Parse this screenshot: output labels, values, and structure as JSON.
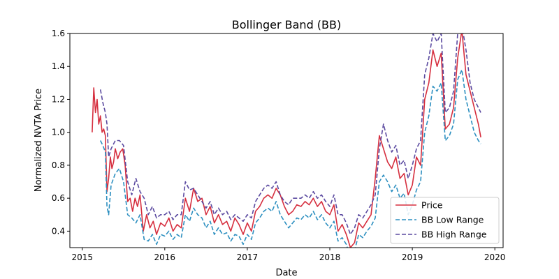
{
  "chart_data": {
    "type": "line",
    "title": "Bollinger Band (BB)",
    "xlabel": "Date",
    "ylabel": "Normalized NVTA Price",
    "xlim": [
      2014.85,
      2020.1
    ],
    "ylim": [
      0.3,
      1.6
    ],
    "x_ticks": [
      2015,
      2016,
      2017,
      2018,
      2019,
      2020
    ],
    "x_tick_labels": [
      "2015",
      "2016",
      "2017",
      "2018",
      "2019",
      "2020"
    ],
    "y_ticks": [
      0.4,
      0.6,
      0.8,
      1.0,
      1.2,
      1.4,
      1.6
    ],
    "y_tick_labels": [
      "0.4",
      "0.6",
      "0.8",
      "1.0",
      "1.2",
      "1.4",
      "1.6"
    ],
    "grid": false,
    "legend_position": "lower-right",
    "series": [
      {
        "name": "Price",
        "color": "#d62f3f",
        "dash": "solid",
        "x": [
          2015.12,
          2015.14,
          2015.16,
          2015.18,
          2015.2,
          2015.22,
          2015.24,
          2015.26,
          2015.28,
          2015.3,
          2015.32,
          2015.34,
          2015.36,
          2015.38,
          2015.4,
          2015.43,
          2015.46,
          2015.49,
          2015.52,
          2015.55,
          2015.58,
          2015.61,
          2015.64,
          2015.67,
          2015.7,
          2015.74,
          2015.78,
          2015.82,
          2015.86,
          2015.9,
          2015.95,
          2016.0,
          2016.05,
          2016.1,
          2016.15,
          2016.2,
          2016.25,
          2016.3,
          2016.35,
          2016.4,
          2016.45,
          2016.5,
          2016.55,
          2016.6,
          2016.65,
          2016.7,
          2016.75,
          2016.8,
          2016.85,
          2016.9,
          2016.95,
          2017.0,
          2017.05,
          2017.1,
          2017.15,
          2017.2,
          2017.25,
          2017.3,
          2017.35,
          2017.4,
          2017.45,
          2017.5,
          2017.55,
          2017.6,
          2017.65,
          2017.7,
          2017.75,
          2017.8,
          2017.85,
          2017.9,
          2017.95,
          2018.0,
          2018.05,
          2018.1,
          2018.15,
          2018.2,
          2018.25,
          2018.3,
          2018.35,
          2018.4,
          2018.45,
          2018.5,
          2018.55,
          2018.6,
          2018.65,
          2018.7,
          2018.75,
          2018.8,
          2018.85,
          2018.9,
          2018.95,
          2019.0,
          2019.05,
          2019.1,
          2019.15,
          2019.2,
          2019.25,
          2019.3,
          2019.35,
          2019.4,
          2019.45,
          2019.5,
          2019.55,
          2019.6,
          2019.65,
          2019.7,
          2019.75,
          2019.8,
          2019.83
        ],
        "y": [
          1.0,
          1.27,
          1.12,
          1.2,
          1.05,
          1.1,
          1.0,
          1.02,
          0.98,
          0.64,
          0.72,
          0.85,
          0.78,
          0.82,
          0.9,
          0.84,
          0.88,
          0.9,
          0.8,
          0.58,
          0.6,
          0.52,
          0.6,
          0.55,
          0.62,
          0.4,
          0.5,
          0.42,
          0.46,
          0.38,
          0.45,
          0.43,
          0.48,
          0.4,
          0.44,
          0.42,
          0.6,
          0.52,
          0.66,
          0.58,
          0.6,
          0.5,
          0.55,
          0.45,
          0.5,
          0.44,
          0.46,
          0.4,
          0.48,
          0.44,
          0.38,
          0.45,
          0.4,
          0.52,
          0.55,
          0.6,
          0.62,
          0.6,
          0.66,
          0.62,
          0.55,
          0.5,
          0.52,
          0.56,
          0.55,
          0.58,
          0.56,
          0.6,
          0.55,
          0.58,
          0.52,
          0.5,
          0.56,
          0.4,
          0.44,
          0.38,
          0.3,
          0.33,
          0.45,
          0.42,
          0.46,
          0.5,
          0.72,
          0.98,
          0.9,
          0.82,
          0.78,
          0.85,
          0.72,
          0.75,
          0.62,
          0.68,
          0.85,
          0.8,
          1.2,
          1.3,
          1.5,
          1.4,
          1.48,
          1.02,
          1.05,
          1.15,
          1.45,
          1.62,
          1.35,
          1.25,
          1.15,
          1.05,
          0.97
        ]
      },
      {
        "name": "BB Low Range",
        "color": "#2c8fc0",
        "dash": "dashed",
        "x": [
          2015.22,
          2015.25,
          2015.28,
          2015.3,
          2015.32,
          2015.35,
          2015.4,
          2015.45,
          2015.5,
          2015.55,
          2015.6,
          2015.65,
          2015.7,
          2015.75,
          2015.8,
          2015.85,
          2015.9,
          2015.95,
          2016.0,
          2016.05,
          2016.1,
          2016.15,
          2016.2,
          2016.25,
          2016.3,
          2016.35,
          2016.4,
          2016.45,
          2016.5,
          2016.55,
          2016.6,
          2016.65,
          2016.7,
          2016.75,
          2016.8,
          2016.85,
          2016.9,
          2016.95,
          2017.0,
          2017.05,
          2017.1,
          2017.15,
          2017.2,
          2017.25,
          2017.3,
          2017.35,
          2017.4,
          2017.45,
          2017.5,
          2017.55,
          2017.6,
          2017.65,
          2017.7,
          2017.75,
          2017.8,
          2017.85,
          2017.9,
          2017.95,
          2018.0,
          2018.05,
          2018.1,
          2018.15,
          2018.2,
          2018.25,
          2018.3,
          2018.35,
          2018.4,
          2018.45,
          2018.5,
          2018.55,
          2018.6,
          2018.65,
          2018.7,
          2018.75,
          2018.8,
          2018.85,
          2018.9,
          2018.95,
          2019.0,
          2019.05,
          2019.1,
          2019.15,
          2019.2,
          2019.25,
          2019.3,
          2019.35,
          2019.4,
          2019.45,
          2019.5,
          2019.55,
          2019.6,
          2019.65,
          2019.7,
          2019.75,
          2019.8,
          2019.83
        ],
        "y": [
          0.95,
          0.92,
          0.88,
          0.55,
          0.5,
          0.68,
          0.75,
          0.78,
          0.7,
          0.5,
          0.48,
          0.45,
          0.5,
          0.35,
          0.34,
          0.38,
          0.32,
          0.38,
          0.37,
          0.4,
          0.35,
          0.38,
          0.36,
          0.5,
          0.46,
          0.54,
          0.5,
          0.48,
          0.42,
          0.46,
          0.38,
          0.42,
          0.38,
          0.39,
          0.34,
          0.38,
          0.37,
          0.32,
          0.38,
          0.35,
          0.45,
          0.48,
          0.52,
          0.54,
          0.52,
          0.58,
          0.5,
          0.46,
          0.42,
          0.45,
          0.48,
          0.47,
          0.5,
          0.48,
          0.52,
          0.47,
          0.5,
          0.45,
          0.42,
          0.46,
          0.34,
          0.36,
          0.32,
          0.24,
          0.28,
          0.38,
          0.36,
          0.4,
          0.43,
          0.48,
          0.7,
          0.74,
          0.7,
          0.64,
          0.68,
          0.6,
          0.63,
          0.5,
          0.56,
          0.65,
          0.7,
          1.0,
          1.1,
          1.28,
          1.25,
          1.3,
          0.95,
          0.98,
          1.05,
          1.32,
          1.38,
          1.2,
          1.1,
          1.0,
          0.95,
          0.93
        ]
      },
      {
        "name": "BB High Range",
        "color": "#5b4aa0",
        "dash": "dashed",
        "x": [
          2015.22,
          2015.25,
          2015.28,
          2015.3,
          2015.32,
          2015.35,
          2015.4,
          2015.45,
          2015.5,
          2015.55,
          2015.6,
          2015.65,
          2015.7,
          2015.75,
          2015.8,
          2015.85,
          2015.9,
          2015.95,
          2016.0,
          2016.05,
          2016.1,
          2016.15,
          2016.2,
          2016.25,
          2016.3,
          2016.35,
          2016.4,
          2016.45,
          2016.5,
          2016.55,
          2016.6,
          2016.65,
          2016.7,
          2016.75,
          2016.8,
          2016.85,
          2016.9,
          2016.95,
          2017.0,
          2017.05,
          2017.1,
          2017.15,
          2017.2,
          2017.25,
          2017.3,
          2017.35,
          2017.4,
          2017.45,
          2017.5,
          2017.55,
          2017.6,
          2017.65,
          2017.7,
          2017.75,
          2017.8,
          2017.85,
          2017.9,
          2017.95,
          2018.0,
          2018.05,
          2018.1,
          2018.15,
          2018.2,
          2018.25,
          2018.3,
          2018.35,
          2018.4,
          2018.45,
          2018.5,
          2018.55,
          2018.6,
          2018.65,
          2018.7,
          2018.75,
          2018.8,
          2018.85,
          2018.9,
          2018.95,
          2019.0,
          2019.05,
          2019.1,
          2019.15,
          2019.2,
          2019.25,
          2019.3,
          2019.35,
          2019.4,
          2019.45,
          2019.5,
          2019.55,
          2019.6,
          2019.65,
          2019.7,
          2019.75,
          2019.8,
          2019.83
        ],
        "y": [
          1.26,
          1.18,
          1.12,
          1.05,
          0.85,
          0.9,
          0.95,
          0.95,
          0.92,
          0.7,
          0.62,
          0.72,
          0.64,
          0.6,
          0.5,
          0.55,
          0.48,
          0.5,
          0.5,
          0.52,
          0.47,
          0.5,
          0.5,
          0.7,
          0.65,
          0.66,
          0.62,
          0.58,
          0.54,
          0.58,
          0.5,
          0.54,
          0.5,
          0.52,
          0.47,
          0.5,
          0.48,
          0.46,
          0.5,
          0.48,
          0.58,
          0.62,
          0.66,
          0.68,
          0.66,
          0.7,
          0.62,
          0.58,
          0.56,
          0.6,
          0.6,
          0.6,
          0.62,
          0.6,
          0.64,
          0.6,
          0.62,
          0.58,
          0.55,
          0.62,
          0.5,
          0.5,
          0.45,
          0.38,
          0.42,
          0.5,
          0.48,
          0.52,
          0.56,
          0.62,
          0.9,
          1.05,
          0.95,
          0.88,
          0.92,
          0.8,
          0.83,
          0.72,
          0.8,
          0.9,
          0.95,
          1.35,
          1.45,
          1.6,
          1.55,
          1.6,
          1.12,
          1.15,
          1.25,
          1.6,
          1.65,
          1.5,
          1.3,
          1.2,
          1.15,
          1.12
        ]
      }
    ]
  }
}
